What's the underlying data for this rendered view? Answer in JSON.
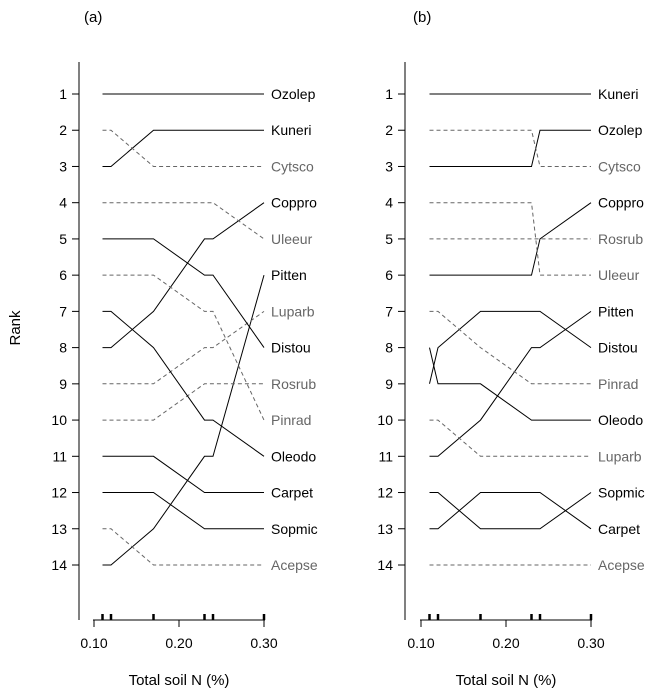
{
  "figure": {
    "ylabel": "Rank",
    "solid_color": "#000000",
    "dashed_color": "#666666"
  },
  "chart_data": [
    {
      "type": "line",
      "panel_label": "(a)",
      "xlabel": "Total soil N (%)",
      "ylabel": "Rank",
      "xlim": [
        0.1,
        0.3
      ],
      "xticks": [
        "0.10",
        "0.20",
        "0.30"
      ],
      "yticks": [
        1,
        2,
        3,
        4,
        5,
        6,
        7,
        8,
        9,
        10,
        11,
        12,
        13,
        14
      ],
      "ylim": [
        1,
        14
      ],
      "y_reversed": true,
      "rug_x": [
        0.11,
        0.12,
        0.17,
        0.23,
        0.24,
        0.3
      ],
      "x": [
        0.11,
        0.12,
        0.17,
        0.23,
        0.24,
        0.3
      ],
      "series": [
        {
          "name": "Ozolep",
          "style": "solid",
          "values": [
            1,
            1,
            1,
            1,
            1,
            1
          ]
        },
        {
          "name": "Kuneri",
          "style": "solid",
          "values": [
            3,
            3,
            2,
            2,
            2,
            2
          ]
        },
        {
          "name": "Cytsco",
          "style": "dashed",
          "values": [
            2,
            2,
            3,
            3,
            3,
            3
          ]
        },
        {
          "name": "Coppro",
          "style": "solid",
          "values": [
            8,
            8,
            7,
            5,
            5,
            4
          ]
        },
        {
          "name": "Uleeur",
          "style": "dashed",
          "values": [
            4,
            4,
            4,
            4,
            4,
            5
          ]
        },
        {
          "name": "Pitten",
          "style": "solid",
          "values": [
            14,
            14,
            13,
            11,
            11,
            6
          ]
        },
        {
          "name": "Luparb",
          "style": "dashed",
          "values": [
            9,
            9,
            9,
            8,
            8,
            7
          ]
        },
        {
          "name": "Distou",
          "style": "solid",
          "values": [
            5,
            5,
            5,
            6,
            6,
            8
          ]
        },
        {
          "name": "Rosrub",
          "style": "dashed",
          "values": [
            10,
            10,
            10,
            9,
            9,
            9
          ]
        },
        {
          "name": "Pinrad",
          "style": "dashed",
          "values": [
            6,
            6,
            6,
            7,
            7,
            10
          ]
        },
        {
          "name": "Oleodo",
          "style": "solid",
          "values": [
            7,
            7,
            8,
            10,
            10,
            11
          ]
        },
        {
          "name": "Carpet",
          "style": "solid",
          "values": [
            11,
            11,
            11,
            12,
            12,
            12
          ]
        },
        {
          "name": "Sopmic",
          "style": "solid",
          "values": [
            12,
            12,
            12,
            13,
            13,
            13
          ]
        },
        {
          "name": "Acepse",
          "style": "dashed",
          "values": [
            13,
            13,
            14,
            14,
            14,
            14
          ]
        }
      ]
    },
    {
      "type": "line",
      "panel_label": "(b)",
      "xlabel": "Total soil N (%)",
      "ylabel": "",
      "xlim": [
        0.1,
        0.3
      ],
      "xticks": [
        "0.10",
        "0.20",
        "0.30"
      ],
      "yticks": [
        1,
        2,
        3,
        4,
        5,
        6,
        7,
        8,
        9,
        10,
        11,
        12,
        13,
        14
      ],
      "ylim": [
        1,
        14
      ],
      "y_reversed": true,
      "rug_x": [
        0.11,
        0.12,
        0.17,
        0.23,
        0.24,
        0.3
      ],
      "x": [
        0.11,
        0.12,
        0.17,
        0.23,
        0.24,
        0.3
      ],
      "series": [
        {
          "name": "Kuneri",
          "style": "solid",
          "values": [
            1,
            1,
            1,
            1,
            1,
            1
          ]
        },
        {
          "name": "Ozolep",
          "style": "solid",
          "values": [
            3,
            3,
            3,
            3,
            2,
            2
          ]
        },
        {
          "name": "Cytsco",
          "style": "dashed",
          "values": [
            2,
            2,
            2,
            2,
            3,
            3
          ]
        },
        {
          "name": "Coppro",
          "style": "solid",
          "values": [
            6,
            6,
            6,
            6,
            5,
            4
          ]
        },
        {
          "name": "Rosrub",
          "style": "dashed",
          "values": [
            5,
            5,
            5,
            5,
            5,
            5
          ]
        },
        {
          "name": "Uleeur",
          "style": "dashed",
          "values": [
            4,
            4,
            4,
            4,
            6,
            6
          ]
        },
        {
          "name": "Pitten",
          "style": "solid",
          "values": [
            11,
            11,
            10,
            8,
            8,
            7
          ]
        },
        {
          "name": "Distou",
          "style": "solid",
          "values": [
            9,
            8,
            7,
            7,
            7,
            8
          ]
        },
        {
          "name": "Pinrad",
          "style": "dashed",
          "values": [
            7,
            7,
            8,
            9,
            9,
            9
          ]
        },
        {
          "name": "Oleodo",
          "style": "solid",
          "values": [
            8,
            9,
            9,
            10,
            10,
            10
          ]
        },
        {
          "name": "Luparb",
          "style": "dashed",
          "values": [
            10,
            10,
            11,
            11,
            11,
            11
          ]
        },
        {
          "name": "Sopmic",
          "style": "solid",
          "values": [
            12,
            12,
            13,
            13,
            13,
            12
          ]
        },
        {
          "name": "Carpet",
          "style": "solid",
          "values": [
            13,
            13,
            12,
            12,
            12,
            13
          ]
        },
        {
          "name": "Acepse",
          "style": "dashed",
          "values": [
            14,
            14,
            14,
            14,
            14,
            14
          ]
        }
      ]
    }
  ]
}
